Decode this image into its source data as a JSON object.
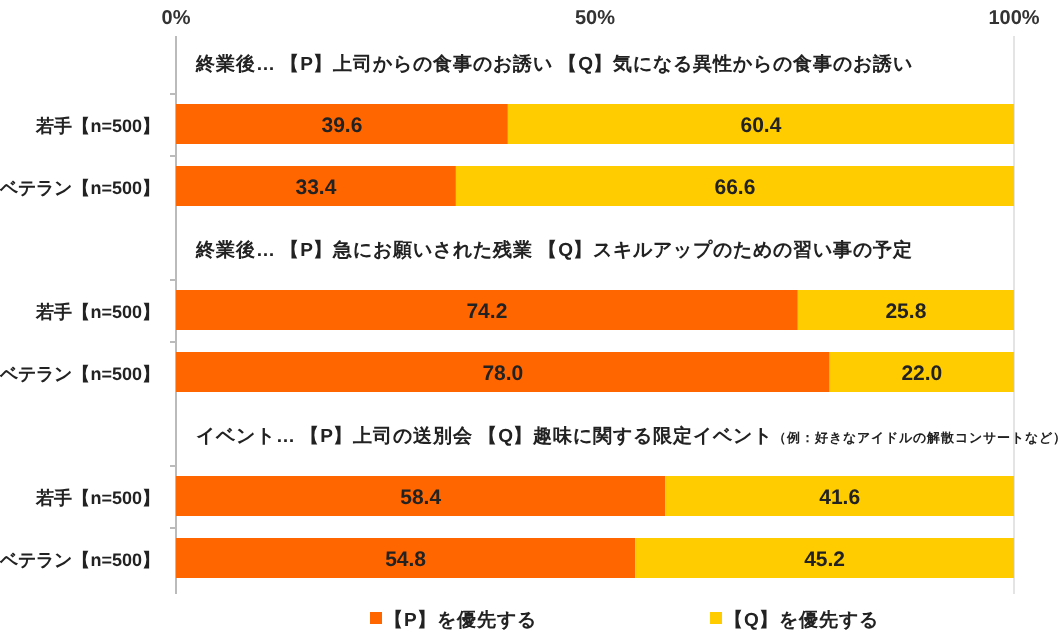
{
  "chart_data": [
    {
      "type": "bar",
      "orientation": "horizontal",
      "stacked": true,
      "title": "終業後… 【P】上司からの食事のお誘い 【Q】気になる異性からの食事のお誘い",
      "categories": [
        "若手【n=500】",
        "ベテラン【n=500】"
      ],
      "series": [
        {
          "color": "#ff6600",
          "values": [
            39.6,
            33.4
          ],
          "value_labels": [
            "39.6",
            "33.4"
          ]
        },
        {
          "color": "#ffcc00",
          "values": [
            60.4,
            66.6
          ],
          "value_labels": [
            "60.4",
            "66.6"
          ]
        }
      ],
      "xlim": [
        0,
        100
      ],
      "xticks": [
        {
          "value": 0,
          "label": "0%"
        },
        {
          "value": 50,
          "label": "50%"
        },
        {
          "value": 100,
          "label": "100%"
        }
      ]
    },
    {
      "type": "bar",
      "orientation": "horizontal",
      "stacked": true,
      "title": "終業後… 【P】急にお願いされた残業 【Q】スキルアップのための習い事の予定",
      "categories": [
        "若手【n=500】",
        "ベテラン【n=500】"
      ],
      "series": [
        {
          "color": "#ff6600",
          "values": [
            74.2,
            78.0
          ],
          "value_labels": [
            "74.2",
            "78.0"
          ]
        },
        {
          "color": "#ffcc00",
          "values": [
            25.8,
            22.0
          ],
          "value_labels": [
            "25.8",
            "22.0"
          ]
        }
      ],
      "xlim": [
        0,
        100
      ],
      "tick_labels": "y"
    },
    {
      "type": "bar",
      "orientation": "horizontal",
      "stacked": true,
      "title": "イベント… 【P】上司の送別会 【Q】趣味に関する限定イベント",
      "subtitle": "（例：好きなアイドルの解散コンサートなど）",
      "categories": [
        "若手【n=500】",
        "ベテラン【n=500】"
      ],
      "series": [
        {
          "name": "【P】を優先する",
          "color": "#ff6600",
          "values": [
            58.4,
            54.8
          ],
          "value_labels": [
            "58.4",
            "54.8"
          ]
        },
        {
          "name": "【Q】を優先する",
          "color": "#ffcc00",
          "values": [
            41.6,
            45.2
          ],
          "value_labels": [
            "41.6",
            "45.2"
          ]
        }
      ],
      "xlim": [
        0,
        100
      ],
      "tick_labels": "y",
      "legend": "bottom"
    }
  ]
}
